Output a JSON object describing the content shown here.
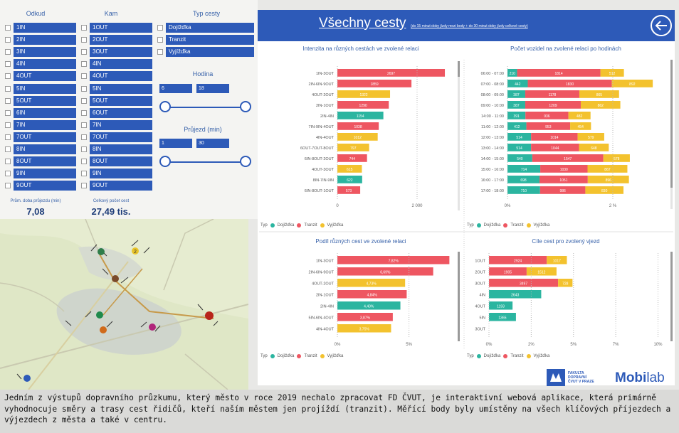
{
  "filters": {
    "odkud_title": "Odkud",
    "kam_title": "Kam",
    "typ_title": "Typ cesty",
    "odkud_items": [
      "1IN",
      "2IN",
      "3IN",
      "4IN",
      "4OUT",
      "5IN",
      "5OUT",
      "6IN",
      "7IN",
      "7OUT",
      "8IN",
      "8OUT",
      "9IN",
      "9OUT"
    ],
    "kam_items": [
      "1OUT",
      "2OUT",
      "3OUT",
      "4IN",
      "4OUT",
      "5IN",
      "5OUT",
      "6OUT",
      "7IN",
      "7OUT",
      "8IN",
      "8OUT",
      "9IN",
      "9OUT"
    ],
    "typ_items": [
      "Dojížďka",
      "Tranzit",
      "Vyjížďka"
    ],
    "hodina_title": "Hodina",
    "hodina_from": "6",
    "hodina_to": "18",
    "prujezd_title": "Průjezd (min)",
    "prujezd_from": "1",
    "prujezd_to": "30"
  },
  "stats": {
    "avg_label": "Prům. doba průjezdu (min)",
    "avg_value": "7,08",
    "total_label": "Celkový počet cest",
    "total_value": "27,49 tis."
  },
  "header": {
    "title": "Všechny cesty",
    "subtitle": "(do 15 minut doby jízdy mezi body + do 30 minut doby jízdy celkové cesty)"
  },
  "colors": {
    "dojizdka": "#2bb5a0",
    "tranzit": "#ee5661",
    "vyjizdka": "#f3c22e",
    "accent": "#2d5ab8"
  },
  "legend": {
    "prefix": "Typ",
    "dojizdka": "Dojížďka",
    "tranzit": "Tranzit",
    "vyjizdka": "Vyjížďka"
  },
  "map": {
    "markers": [
      {
        "label": "2",
        "color": "#e8c42a"
      }
    ]
  },
  "logos": {
    "fd_line1": "FAKULTA",
    "fd_line2": "DOPRAVNÍ",
    "fd_line3": "ČVUT V PRAZE",
    "mobi": "Mobi",
    "lab": "lab"
  },
  "caption": "Jedním z výstupů dopravního průzkumu, který město v roce 2019 nechalo zpracovat FD ČVUT, je interaktivní webová aplikace, která primárně vyhodnocuje směry a trasy cest řidičů, kteří naším městem jen projíždí (tranzit). Měřící body byly umístěny na všech klíčových příjezdech a výjezdech z města a také v centru.",
  "chart_data": [
    {
      "type": "bar",
      "title": "Intenzita na různých cestách ve zvolené relaci",
      "categories": [
        "1IN-3OUT",
        "2IN-6IN-9OUT",
        "4OUT-2OUT",
        "2IN-1OUT",
        "2IN-4IN",
        "7IN-9IN-4OUT",
        "4IN-4OUT",
        "6OUT-7OUT-8OUT",
        "6IN-8OUT-2OUT",
        "4OUT-3OUT",
        "8IN-7IN-9IN",
        "6IN-8OUT-1OUT"
      ],
      "values": [
        2697,
        1859,
        1322,
        1290,
        1154,
        1038,
        1012,
        797,
        744,
        615,
        622,
        573
      ],
      "value_labels": [
        "2697",
        "1859",
        "1322",
        "1290",
        "1154",
        "1038",
        "1012",
        "797",
        "744",
        "615",
        "622",
        "573"
      ],
      "colors": [
        "tranzit",
        "tranzit",
        "vyjizdka",
        "tranzit",
        "dojizdka",
        "tranzit",
        "vyjizdka",
        "vyjizdka",
        "tranzit",
        "vyjizdka",
        "dojizdka",
        "tranzit"
      ],
      "xlim": [
        0,
        3000
      ],
      "ticks": [
        {
          "v": 0,
          "label": "0"
        },
        {
          "v": 2000,
          "label": "2 000"
        }
      ]
    },
    {
      "type": "bar",
      "stacked": true,
      "percent": true,
      "title": "Počet vozidel na zvolené relaci po hodinách",
      "categories": [
        "06:00 - 07:00",
        "07:00 - 08:00",
        "08:00 - 09:00",
        "09:00 - 10:00",
        "14:00 - 11:00",
        "11:00 - 12:00",
        "12:00 - 13:00",
        "13:00 - 14:00",
        "14:00 - 15:00",
        "15:00 - 16:00",
        "16:00 - 17:00",
        "17:00 - 18:00"
      ],
      "series": [
        {
          "name": "Dojížďka",
          "values": [
            210,
            442,
            387,
            387,
            391,
            412,
            514,
            514,
            540,
            714,
            698,
            710
          ],
          "labels": [
            "210",
            "442",
            "387",
            "387",
            "391",
            "412",
            "514",
            "514",
            "540",
            "714",
            "698",
            "710"
          ]
        },
        {
          "name": "Tranzit",
          "values": [
            1814,
            1830,
            1178,
            1209,
            936,
            953,
            1014,
            1044,
            1547,
            1030,
            1051,
            986
          ],
          "labels": [
            "1814",
            "1830",
            "1178",
            "1209",
            "936",
            "953",
            "1014",
            "1044",
            "1547",
            "1030",
            "1051",
            "986"
          ]
        },
        {
          "name": "Vyjížďka",
          "values": [
            512,
            892,
            865,
            862,
            482,
            454,
            579,
            648,
            578,
            867,
            896,
            830
          ],
          "labels": [
            "512",
            "892",
            "865",
            "862",
            "482",
            "454",
            "579",
            "648",
            "578",
            "867",
            "896",
            "830"
          ]
        }
      ],
      "ticks": [
        {
          "v": 0.5,
          "label": "0%"
        },
        {
          "v": 2.5,
          "label": "2 %"
        }
      ]
    },
    {
      "type": "bar",
      "title": "Podíl různých cest ve zvolené relaci",
      "categories": [
        "1IN-3OUT",
        "2IN-6IN-9OUT",
        "4OUT-2OUT",
        "2IN-1OUT",
        "2IN-4IN",
        "5IN-6IN-4OUT",
        "4IN-4OUT"
      ],
      "values": [
        7.82,
        6.69,
        4.73,
        4.84,
        4.4,
        3.87,
        3.75
      ],
      "value_labels": [
        "7,82%",
        "6,69%",
        "4,73%",
        "4,84%",
        "4,40%",
        "3,87%",
        "3,75%"
      ],
      "colors": [
        "tranzit",
        "tranzit",
        "vyjizdka",
        "tranzit",
        "dojizdka",
        "tranzit",
        "vyjizdka"
      ],
      "xlim": [
        0,
        8
      ],
      "ticks": [
        {
          "v": 0,
          "label": "0%"
        },
        {
          "v": 5,
          "label": "5%"
        }
      ]
    },
    {
      "type": "bar",
      "stacked": true,
      "title": "Cíle cest pro zvolený vjezd",
      "categories": [
        "1OUT",
        "2OUT",
        "3OUT",
        "4IN",
        "4OUT",
        "5IN",
        "3OUT"
      ],
      "series": [
        {
          "name": "Dojížďka",
          "values": [
            0,
            0,
            0,
            2643,
            1193,
            1365,
            0
          ],
          "labels": [
            "",
            "",
            "",
            "2643",
            "1193",
            "1365",
            ""
          ]
        },
        {
          "name": "Tranzit",
          "values": [
            2924,
            1905,
            3497,
            0,
            0,
            0,
            0
          ],
          "labels": [
            "2924",
            "1905",
            "3497",
            "",
            "",
            "",
            ""
          ]
        },
        {
          "name": "Vyjížďka",
          "values": [
            1017,
            1512,
            728,
            0,
            0,
            0,
            0
          ],
          "labels": [
            "1017",
            "1512",
            "728",
            "",
            "",
            "",
            ""
          ]
        }
      ],
      "xlim": [
        0,
        9000
      ],
      "ticks": [
        {
          "v": 0,
          "label": "0%"
        },
        {
          "v": 2.5,
          "label": "2%"
        },
        {
          "v": 5,
          "label": "5%"
        },
        {
          "v": 7.5,
          "label": "7%"
        },
        {
          "v": 10,
          "label": "10%"
        }
      ]
    }
  ]
}
